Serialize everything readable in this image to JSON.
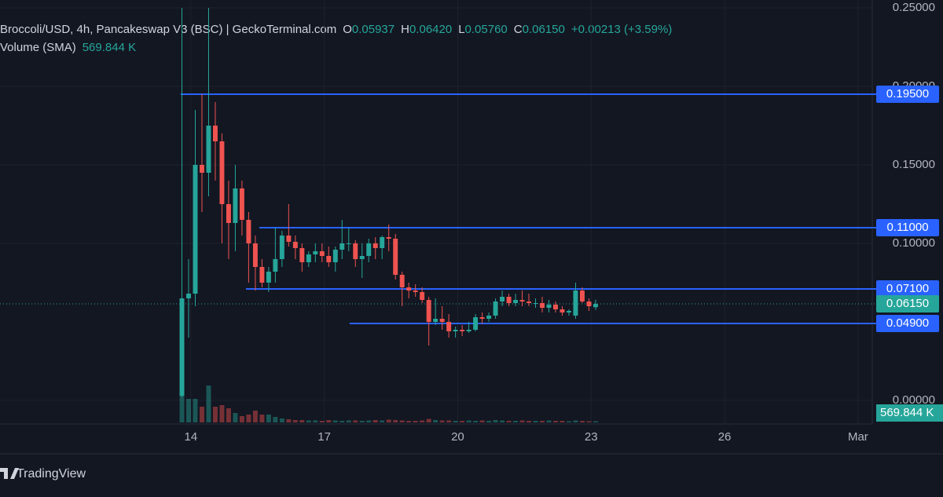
{
  "chart_data": {
    "type": "candlestick",
    "title": "Broccoli/USD, 4h, Pancakeswap V3 (BSC) | GeckoTerminal.com",
    "ohlc_legend": [
      {
        "key": "O",
        "text": "0.05937"
      },
      {
        "key": "H",
        "text": "0.06420"
      },
      {
        "key": "L",
        "text": "0.05760"
      },
      {
        "key": "C",
        "text": "0.06150"
      }
    ],
    "change": "+0.00213 (+3.59%)",
    "volume_title": "Volume (SMA)",
    "volume_text": "569.844 K",
    "volume_badge": "569.844 K",
    "up_color": "#26a69a",
    "down_color": "#ef5350",
    "line_color": "#2962ff",
    "xlim": [
      9.71,
      29.32
    ],
    "xticks": [
      14,
      17,
      20,
      23,
      26,
      {
        "value": 29,
        "label": "Mar"
      }
    ],
    "ylim": [
      -0.015,
      0.255
    ],
    "yticks": [
      {
        "value": 0.25,
        "label": "0.25000"
      },
      {
        "value": 0.2,
        "label": "0.20000"
      },
      {
        "value": 0.15,
        "label": "0.15000"
      },
      {
        "value": 0.1,
        "label": "0.10000"
      },
      {
        "value": 0,
        "label": "0.00000"
      }
    ],
    "levels": [
      {
        "value": 0.195,
        "label": "0.19500",
        "from": 13.77
      },
      {
        "value": 0.11,
        "label": "0.11000",
        "from": 15.54
      },
      {
        "value": 0.071,
        "label": "0.07100",
        "from": 15.24
      },
      {
        "value": 0.049,
        "label": "0.04900",
        "from": 17.57
      }
    ],
    "last_price": {
      "value": 0.0615,
      "label": "0.06150"
    },
    "x": [
      13.8,
      13.95,
      14.1,
      14.25,
      14.4,
      14.55,
      14.7,
      14.85,
      15,
      15.15,
      15.3,
      15.45,
      15.6,
      15.75,
      15.9,
      16.05,
      16.2,
      16.35,
      16.5,
      16.65,
      16.8,
      16.95,
      17.1,
      17.25,
      17.4,
      17.55,
      17.7,
      17.85,
      18,
      18.15,
      18.3,
      18.45,
      18.6,
      18.75,
      18.9,
      19.05,
      19.2,
      19.35,
      19.5,
      19.65,
      19.8,
      19.95,
      20.1,
      20.25,
      20.4,
      20.55,
      20.7,
      20.85,
      21,
      21.15,
      21.3,
      21.45,
      21.6,
      21.75,
      21.9,
      22.05,
      22.2,
      22.35,
      22.5,
      22.65,
      22.8,
      22.95,
      23.1
    ],
    "open": [
      0.003,
      0.065,
      0.068,
      0.15,
      0.145,
      0.175,
      0.165,
      0.125,
      0.113,
      0.135,
      0.115,
      0.1,
      0.085,
      0.075,
      0.082,
      0.09,
      0.105,
      0.101,
      0.097,
      0.088,
      0.093,
      0.095,
      0.092,
      0.088,
      0.096,
      0.1,
      0.1,
      0.09,
      0.092,
      0.1,
      0.097,
      0.104,
      0.103,
      0.08,
      0.072,
      0.07,
      0.069,
      0.064,
      0.05,
      0.052,
      0.05,
      0.044,
      0.045,
      0.044,
      0.045,
      0.053,
      0.052,
      0.054,
      0.063,
      0.066,
      0.062,
      0.064,
      0.063,
      0.062,
      0.062,
      0.059,
      0.061,
      0.058,
      0.056,
      0.054,
      0.07,
      0.063,
      0.05937
    ],
    "high": [
      0.25,
      0.09,
      0.185,
      0.195,
      0.25,
      0.19,
      0.17,
      0.14,
      0.15,
      0.14,
      0.12,
      0.105,
      0.09,
      0.085,
      0.11,
      0.108,
      0.125,
      0.105,
      0.1,
      0.095,
      0.1,
      0.1,
      0.098,
      0.098,
      0.115,
      0.11,
      0.102,
      0.1,
      0.103,
      0.104,
      0.105,
      0.112,
      0.106,
      0.082,
      0.075,
      0.074,
      0.072,
      0.066,
      0.065,
      0.06,
      0.055,
      0.047,
      0.048,
      0.05,
      0.055,
      0.056,
      0.056,
      0.065,
      0.07,
      0.068,
      0.068,
      0.07,
      0.068,
      0.065,
      0.066,
      0.064,
      0.063,
      0.06,
      0.058,
      0.075,
      0.072,
      0.065,
      0.0642
    ],
    "low": [
      0.002,
      0.04,
      0.06,
      0.12,
      0.13,
      0.14,
      0.1,
      0.09,
      0.095,
      0.105,
      0.075,
      0.07,
      0.072,
      0.069,
      0.075,
      0.085,
      0.098,
      0.09,
      0.082,
      0.085,
      0.088,
      0.088,
      0.085,
      0.082,
      0.09,
      0.095,
      0.085,
      0.078,
      0.088,
      0.09,
      0.09,
      0.095,
      0.077,
      0.06,
      0.065,
      0.066,
      0.062,
      0.035,
      0.048,
      0.045,
      0.04,
      0.04,
      0.041,
      0.043,
      0.044,
      0.049,
      0.05,
      0.052,
      0.06,
      0.06,
      0.06,
      0.06,
      0.06,
      0.059,
      0.056,
      0.056,
      0.056,
      0.054,
      0.054,
      0.052,
      0.062,
      0.057,
      0.0576
    ],
    "close": [
      0.065,
      0.068,
      0.15,
      0.145,
      0.175,
      0.165,
      0.125,
      0.113,
      0.135,
      0.115,
      0.1,
      0.085,
      0.075,
      0.082,
      0.09,
      0.105,
      0.101,
      0.097,
      0.088,
      0.093,
      0.095,
      0.092,
      0.088,
      0.096,
      0.1,
      0.1,
      0.09,
      0.092,
      0.1,
      0.097,
      0.104,
      0.103,
      0.08,
      0.072,
      0.07,
      0.069,
      0.064,
      0.05,
      0.052,
      0.05,
      0.044,
      0.045,
      0.044,
      0.045,
      0.053,
      0.052,
      0.054,
      0.063,
      0.066,
      0.062,
      0.064,
      0.063,
      0.062,
      0.062,
      0.059,
      0.061,
      0.058,
      0.056,
      0.057,
      0.07,
      0.063,
      0.06,
      0.0615
    ],
    "volume": [
      7000,
      6000,
      6000,
      4000,
      9400,
      4000,
      4400,
      3600,
      2400,
      1600,
      2000,
      3000,
      2000,
      2000,
      1400,
      1000,
      800,
      600,
      600,
      500,
      500,
      400,
      600,
      500,
      400,
      500,
      500,
      400,
      500,
      600,
      500,
      700,
      600,
      500,
      400,
      400,
      500,
      900,
      600,
      500,
      500,
      400,
      400,
      500,
      400,
      500,
      400,
      600,
      500,
      400,
      400,
      500,
      400,
      400,
      400,
      500,
      400,
      400,
      300,
      500,
      400,
      300,
      300
    ],
    "footer": "TradingView"
  }
}
